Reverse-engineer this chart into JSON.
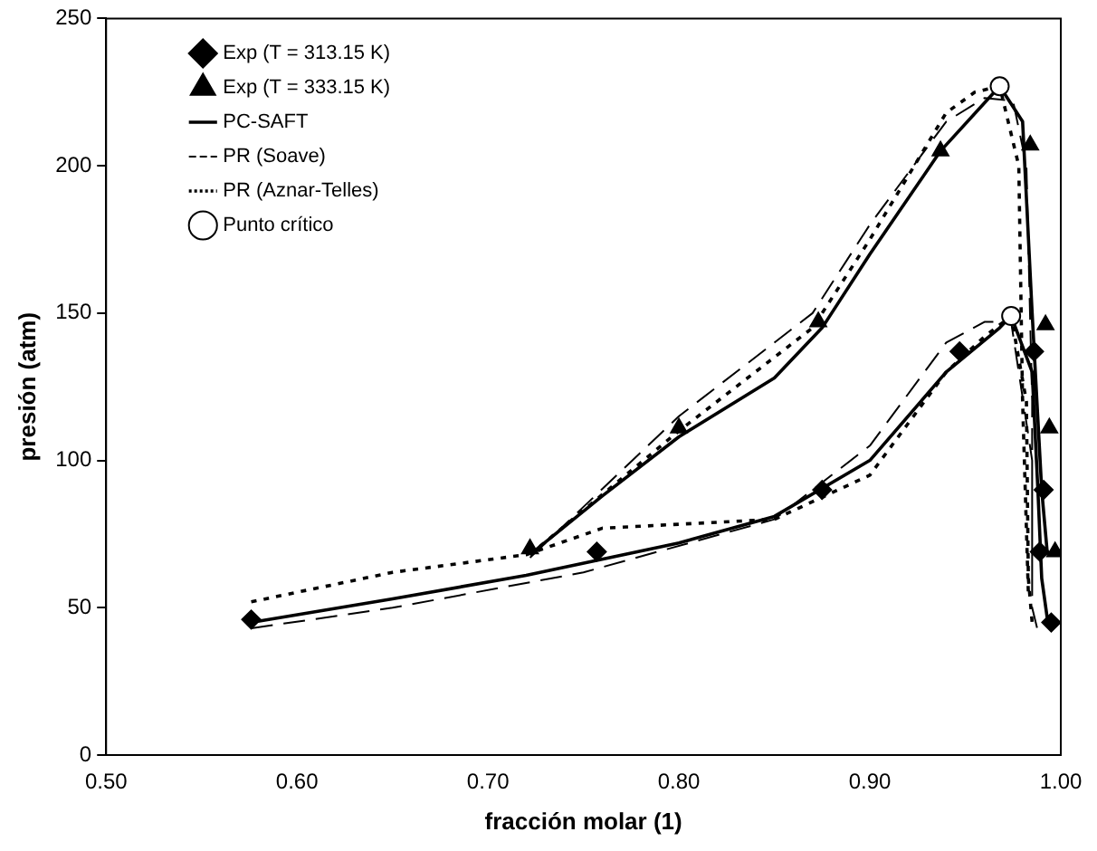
{
  "chart_data": {
    "type": "scatter",
    "xlabel": "fracción molar (1)",
    "ylabel": "presión (atm)",
    "xlim": [
      0.5,
      1.0
    ],
    "xticks": [
      {
        "value": 0.5,
        "label": "0.50"
      },
      {
        "value": 0.6,
        "label": "0.60"
      },
      {
        "value": 0.7,
        "label": "0.70"
      },
      {
        "value": 0.8,
        "label": "0.80"
      },
      {
        "value": 0.9,
        "label": "0.90"
      },
      {
        "value": 1.0,
        "label": "1.00"
      }
    ],
    "ylim": [
      0,
      250
    ],
    "yticks": [
      0,
      50,
      100,
      150,
      200,
      250
    ],
    "grid": false,
    "legend": "top left",
    "series": [
      {
        "name": "Exp (T = 313.15 K)",
        "type": "scatter",
        "marker": "diamond",
        "color": "#000000",
        "x": [
          0.576,
          0.757,
          0.875,
          0.947,
          0.986,
          0.991,
          0.989,
          0.995
        ],
        "values": [
          46,
          69,
          90,
          137,
          137,
          90,
          69,
          45
        ]
      },
      {
        "name": "Exp (T = 333.15 K)",
        "type": "scatter",
        "marker": "triangle",
        "color": "#000000",
        "x": [
          0.722,
          0.8,
          0.873,
          0.937,
          0.984,
          0.992,
          0.994,
          0.997
        ],
        "values": [
          70,
          111,
          147,
          205,
          207,
          146,
          111,
          69
        ]
      },
      {
        "name": "PC-SAFT",
        "type": "line",
        "line_style": "solid",
        "color": "#000000",
        "x": [
          0.576,
          0.65,
          0.72,
          0.8,
          0.85,
          0.9,
          0.94,
          0.968,
          0.974,
          0.985,
          0.988,
          0.99,
          0.993,
          null,
          0.722,
          0.76,
          0.8,
          0.85,
          0.875,
          0.9,
          0.937,
          0.968,
          0.98,
          0.985,
          0.99,
          0.993
        ],
        "values": [
          45,
          53,
          61,
          72,
          81,
          100,
          130,
          145,
          149,
          130,
          90,
          60,
          46,
          null,
          68,
          88,
          108,
          128,
          145,
          170,
          205,
          227,
          215,
          150,
          90,
          68
        ]
      },
      {
        "name": "PR (Soave)",
        "type": "line",
        "line_style": "dashed",
        "color": "#000000",
        "x": [
          0.576,
          0.65,
          0.75,
          0.85,
          0.9,
          0.94,
          0.96,
          0.974,
          0.985,
          0.985,
          0.988,
          null,
          0.722,
          0.8,
          0.87,
          0.9,
          0.94,
          0.96,
          0.975,
          0.982,
          0.985,
          0.985
        ],
        "values": [
          43,
          50,
          62,
          80,
          105,
          140,
          147,
          147,
          100,
          50,
          42,
          null,
          67,
          115,
          150,
          180,
          215,
          223,
          222,
          200,
          120,
          60
        ]
      },
      {
        "name": "PR (Aznar-Telles)",
        "type": "line",
        "line_style": "dotted",
        "color": "#000000",
        "x": [
          0.576,
          0.65,
          0.72,
          0.76,
          0.85,
          0.9,
          0.94,
          0.96,
          0.974,
          0.982,
          0.983,
          0.985,
          null,
          0.722,
          0.8,
          0.87,
          0.9,
          0.94,
          0.955,
          0.968,
          0.978,
          0.98,
          0.983
        ],
        "values": [
          52,
          62,
          68,
          77,
          80,
          95,
          130,
          142,
          149,
          120,
          60,
          45,
          null,
          68,
          110,
          145,
          175,
          218,
          225,
          227,
          200,
          120,
          55
        ]
      },
      {
        "name": "Punto crítico",
        "type": "scatter",
        "marker": "circle",
        "color": "#000000",
        "x": [
          0.968,
          0.974
        ],
        "values": [
          227,
          149
        ]
      }
    ]
  }
}
